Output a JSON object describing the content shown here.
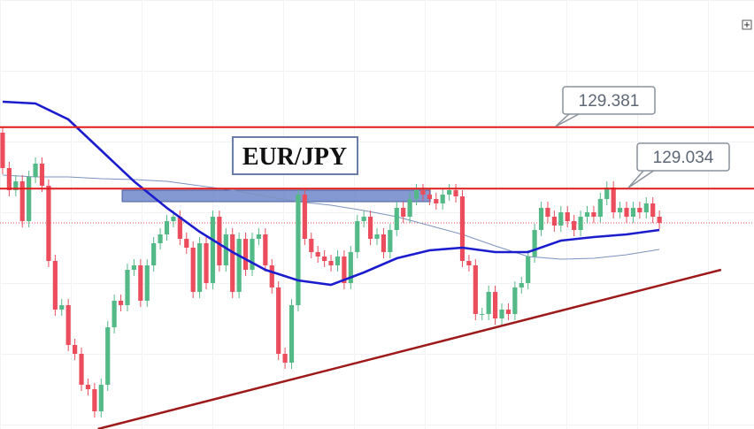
{
  "chart_data": {
    "type": "candlestick",
    "title": "EUR/JPY",
    "ylim": [
      127.675,
      130.1
    ],
    "xlim": [
      -0.4,
      114.4
    ],
    "up_color": "#53b987",
    "down_color": "#eb4d5c",
    "candles": {
      "open": [
        129.35,
        129.15,
        129.025,
        129.075,
        128.85,
        129.1,
        129.175,
        129.05,
        128.625,
        128.35,
        128.375,
        128.15,
        128.1,
        127.925,
        127.9,
        127.775,
        127.925,
        128.25,
        128.4,
        128.375,
        128.575,
        128.6,
        128.4,
        128.6,
        128.725,
        128.775,
        128.85,
        128.875,
        128.75,
        128.7,
        128.45,
        128.725,
        128.5,
        128.875,
        128.6,
        128.775,
        128.45,
        128.75,
        128.575,
        128.75,
        128.775,
        128.6,
        128.475,
        128.1,
        128.05,
        128.375,
        129.0,
        128.75,
        128.675,
        128.65,
        128.625,
        128.6,
        128.65,
        128.5,
        128.675,
        128.85,
        128.875,
        128.75,
        128.775,
        128.675,
        128.8,
        128.925,
        128.875,
        128.975,
        129.025,
        129.0,
        128.975,
        128.95,
        129.0,
        129.025,
        128.99,
        128.625,
        128.6,
        128.325,
        128.325,
        128.45,
        128.3,
        128.35,
        128.325,
        128.475,
        128.5,
        128.65,
        128.8,
        128.925,
        128.875,
        128.825,
        128.9,
        128.85,
        128.8,
        128.875,
        128.9,
        128.875,
        128.975,
        129.04,
        128.9,
        128.925,
        128.875,
        128.925,
        128.9,
        128.95,
        128.875
      ],
      "high": [
        129.385,
        129.185,
        129.11,
        129.11,
        129.135,
        129.21,
        129.21,
        129.085,
        128.66,
        128.41,
        128.41,
        128.185,
        128.135,
        127.96,
        127.935,
        127.96,
        128.285,
        128.435,
        128.435,
        128.61,
        128.635,
        128.635,
        128.635,
        128.76,
        128.81,
        128.885,
        128.91,
        128.91,
        128.785,
        128.735,
        128.76,
        128.76,
        128.91,
        128.91,
        128.81,
        128.81,
        128.785,
        128.785,
        128.785,
        128.81,
        128.81,
        128.635,
        128.51,
        128.135,
        128.41,
        129.035,
        129.035,
        128.785,
        128.71,
        128.685,
        128.66,
        128.685,
        128.685,
        128.71,
        128.885,
        128.91,
        128.91,
        128.81,
        128.81,
        128.835,
        128.96,
        128.96,
        129.01,
        129.06,
        129.06,
        129.035,
        129.01,
        129.035,
        129.06,
        129.06,
        129.025,
        128.66,
        128.635,
        128.36,
        128.485,
        128.485,
        128.385,
        128.385,
        128.51,
        128.535,
        128.685,
        128.835,
        128.96,
        128.96,
        128.91,
        128.935,
        128.935,
        128.885,
        128.91,
        128.935,
        128.935,
        129.01,
        129.075,
        129.075,
        128.96,
        128.96,
        128.96,
        128.96,
        128.985,
        128.985,
        128.91
      ],
      "low": [
        129.115,
        128.99,
        128.99,
        128.815,
        128.815,
        129.065,
        129.015,
        128.59,
        128.315,
        128.315,
        128.115,
        128.065,
        127.89,
        127.865,
        127.74,
        127.74,
        127.89,
        128.215,
        128.34,
        128.34,
        128.54,
        128.365,
        128.365,
        128.565,
        128.69,
        128.74,
        128.815,
        128.715,
        128.665,
        128.415,
        128.415,
        128.465,
        128.465,
        128.565,
        128.565,
        128.415,
        128.415,
        128.54,
        128.54,
        128.715,
        128.565,
        128.44,
        128.065,
        128.015,
        128.015,
        128.34,
        128.715,
        128.64,
        128.615,
        128.59,
        128.565,
        128.565,
        128.465,
        128.465,
        128.64,
        128.815,
        128.715,
        128.715,
        128.64,
        128.64,
        128.765,
        128.84,
        128.84,
        128.94,
        128.965,
        128.94,
        128.915,
        128.915,
        128.965,
        128.955,
        128.59,
        128.565,
        128.29,
        128.29,
        128.29,
        128.265,
        128.265,
        128.29,
        128.29,
        128.44,
        128.465,
        128.615,
        128.765,
        128.84,
        128.79,
        128.79,
        128.815,
        128.765,
        128.765,
        128.84,
        128.84,
        128.84,
        128.94,
        128.865,
        128.865,
        128.84,
        128.84,
        128.865,
        128.865,
        128.84,
        128.805
      ],
      "close": [
        129.15,
        129.025,
        129.075,
        128.85,
        129.1,
        129.175,
        129.05,
        128.625,
        128.35,
        128.375,
        128.15,
        128.1,
        127.925,
        127.9,
        127.775,
        127.925,
        128.25,
        128.4,
        128.375,
        128.575,
        128.6,
        128.4,
        128.6,
        128.725,
        128.775,
        128.85,
        128.875,
        128.75,
        128.7,
        128.45,
        128.725,
        128.5,
        128.875,
        128.6,
        128.775,
        128.45,
        128.75,
        128.575,
        128.75,
        128.775,
        128.6,
        128.475,
        128.1,
        128.05,
        128.375,
        129.0,
        128.75,
        128.675,
        128.65,
        128.625,
        128.6,
        128.65,
        128.5,
        128.675,
        128.85,
        128.875,
        128.75,
        128.775,
        128.675,
        128.8,
        128.925,
        128.875,
        128.975,
        129.025,
        129.0,
        128.975,
        128.95,
        129.0,
        129.025,
        128.99,
        128.625,
        128.6,
        128.325,
        128.325,
        128.45,
        128.3,
        128.35,
        128.325,
        128.475,
        128.5,
        128.65,
        128.8,
        128.925,
        128.875,
        128.825,
        128.9,
        128.85,
        128.8,
        128.875,
        128.9,
        128.875,
        128.975,
        129.04,
        128.9,
        128.925,
        128.875,
        128.925,
        128.9,
        128.95,
        128.875,
        128.84
      ]
    },
    "series": [
      {
        "color": "#1c1ccf",
        "width": 2.6,
        "x": [
          0,
          5,
          10,
          15,
          20,
          25,
          30,
          35,
          40,
          45,
          50,
          55,
          60,
          65,
          70,
          75,
          80,
          85,
          90,
          95,
          100
        ],
        "values": [
          129.525,
          129.515,
          129.425,
          129.25,
          129.075,
          128.925,
          128.79,
          128.675,
          128.575,
          128.515,
          128.49,
          128.56,
          128.64,
          128.685,
          128.7,
          128.675,
          128.675,
          128.74,
          128.76,
          128.775,
          128.8
        ]
      },
      {
        "color": "#7b93c0",
        "width": 1,
        "x": [
          0,
          5,
          10,
          15,
          20,
          25,
          30,
          35,
          40,
          45,
          50,
          55,
          60,
          65,
          70,
          75,
          80,
          85,
          90,
          95,
          100
        ],
        "values": [
          129.11,
          129.1,
          129.1,
          129.09,
          129.085,
          129.075,
          129.05,
          129.025,
          128.99,
          128.96,
          128.94,
          128.91,
          128.875,
          128.825,
          128.775,
          128.71,
          128.65,
          128.635,
          128.64,
          128.66,
          128.69
        ]
      }
    ],
    "levels": [
      {
        "value": 129.381,
        "color": "#e01b1b"
      },
      {
        "value": 129.034,
        "color": "#e01b1b"
      }
    ],
    "zone": {
      "x": [
        18.2,
        65.1
      ],
      "values": [
        129.025,
        128.96
      ],
      "color": "#6f87c9"
    },
    "trendline": {
      "x": [
        14.5,
        109.4
      ],
      "values": [
        127.675,
        128.575
      ],
      "color": "#9e1a1a"
    }
  }
}
